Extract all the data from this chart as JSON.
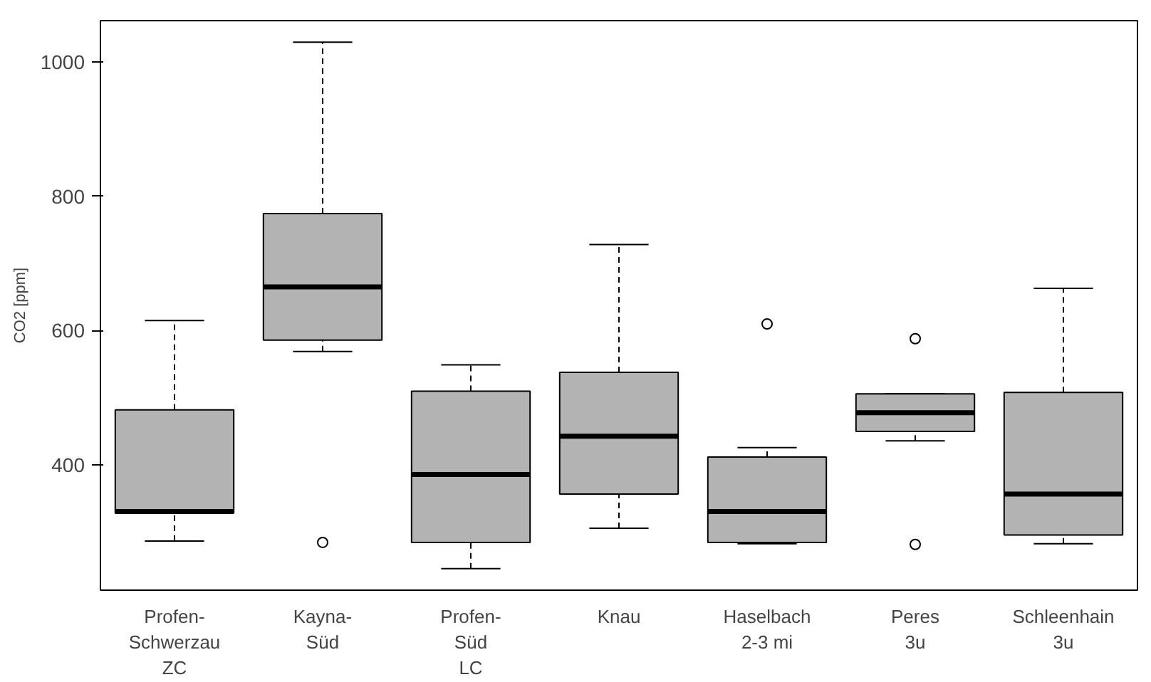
{
  "chart_data": {
    "type": "box",
    "ylabel": "CO2 [ppm]",
    "categories": [
      "Profen-\nSchwerzau\nZC",
      "Kayna-\nSüd",
      "Profen-\nSüd\nLC",
      "Knau",
      "Haselbach\n2-3 mi",
      "Peres\n3u",
      "Schleenhain\n3u"
    ],
    "series": [
      {
        "color": "#b3b3b3",
        "boxes": [
          {
            "low": 287,
            "q1": 329,
            "median": 331,
            "q3": 482,
            "high": 615
          },
          {
            "low": 569,
            "q1": 586,
            "median": 665,
            "q3": 774,
            "high": 1029,
            "outliers": [
              285
            ]
          },
          {
            "low": 246,
            "q1": 285,
            "median": 386,
            "q3": 510,
            "high": 549
          },
          {
            "low": 306,
            "q1": 357,
            "median": 443,
            "q3": 538,
            "high": 728
          },
          {
            "low": 283,
            "q1": 285,
            "median": 331,
            "q3": 412,
            "high": 426,
            "outliers": [
              610
            ]
          },
          {
            "low": 436,
            "q1": 450,
            "median": 478,
            "q3": 506,
            "high": 506,
            "outliers": [
              588,
              282
            ]
          },
          {
            "low": 283,
            "q1": 296,
            "median": 357,
            "q3": 508,
            "high": 663
          }
        ]
      }
    ],
    "ylim": [
      214,
      1061
    ],
    "yticks": [
      400,
      600,
      800,
      1000
    ],
    "grid": false
  }
}
